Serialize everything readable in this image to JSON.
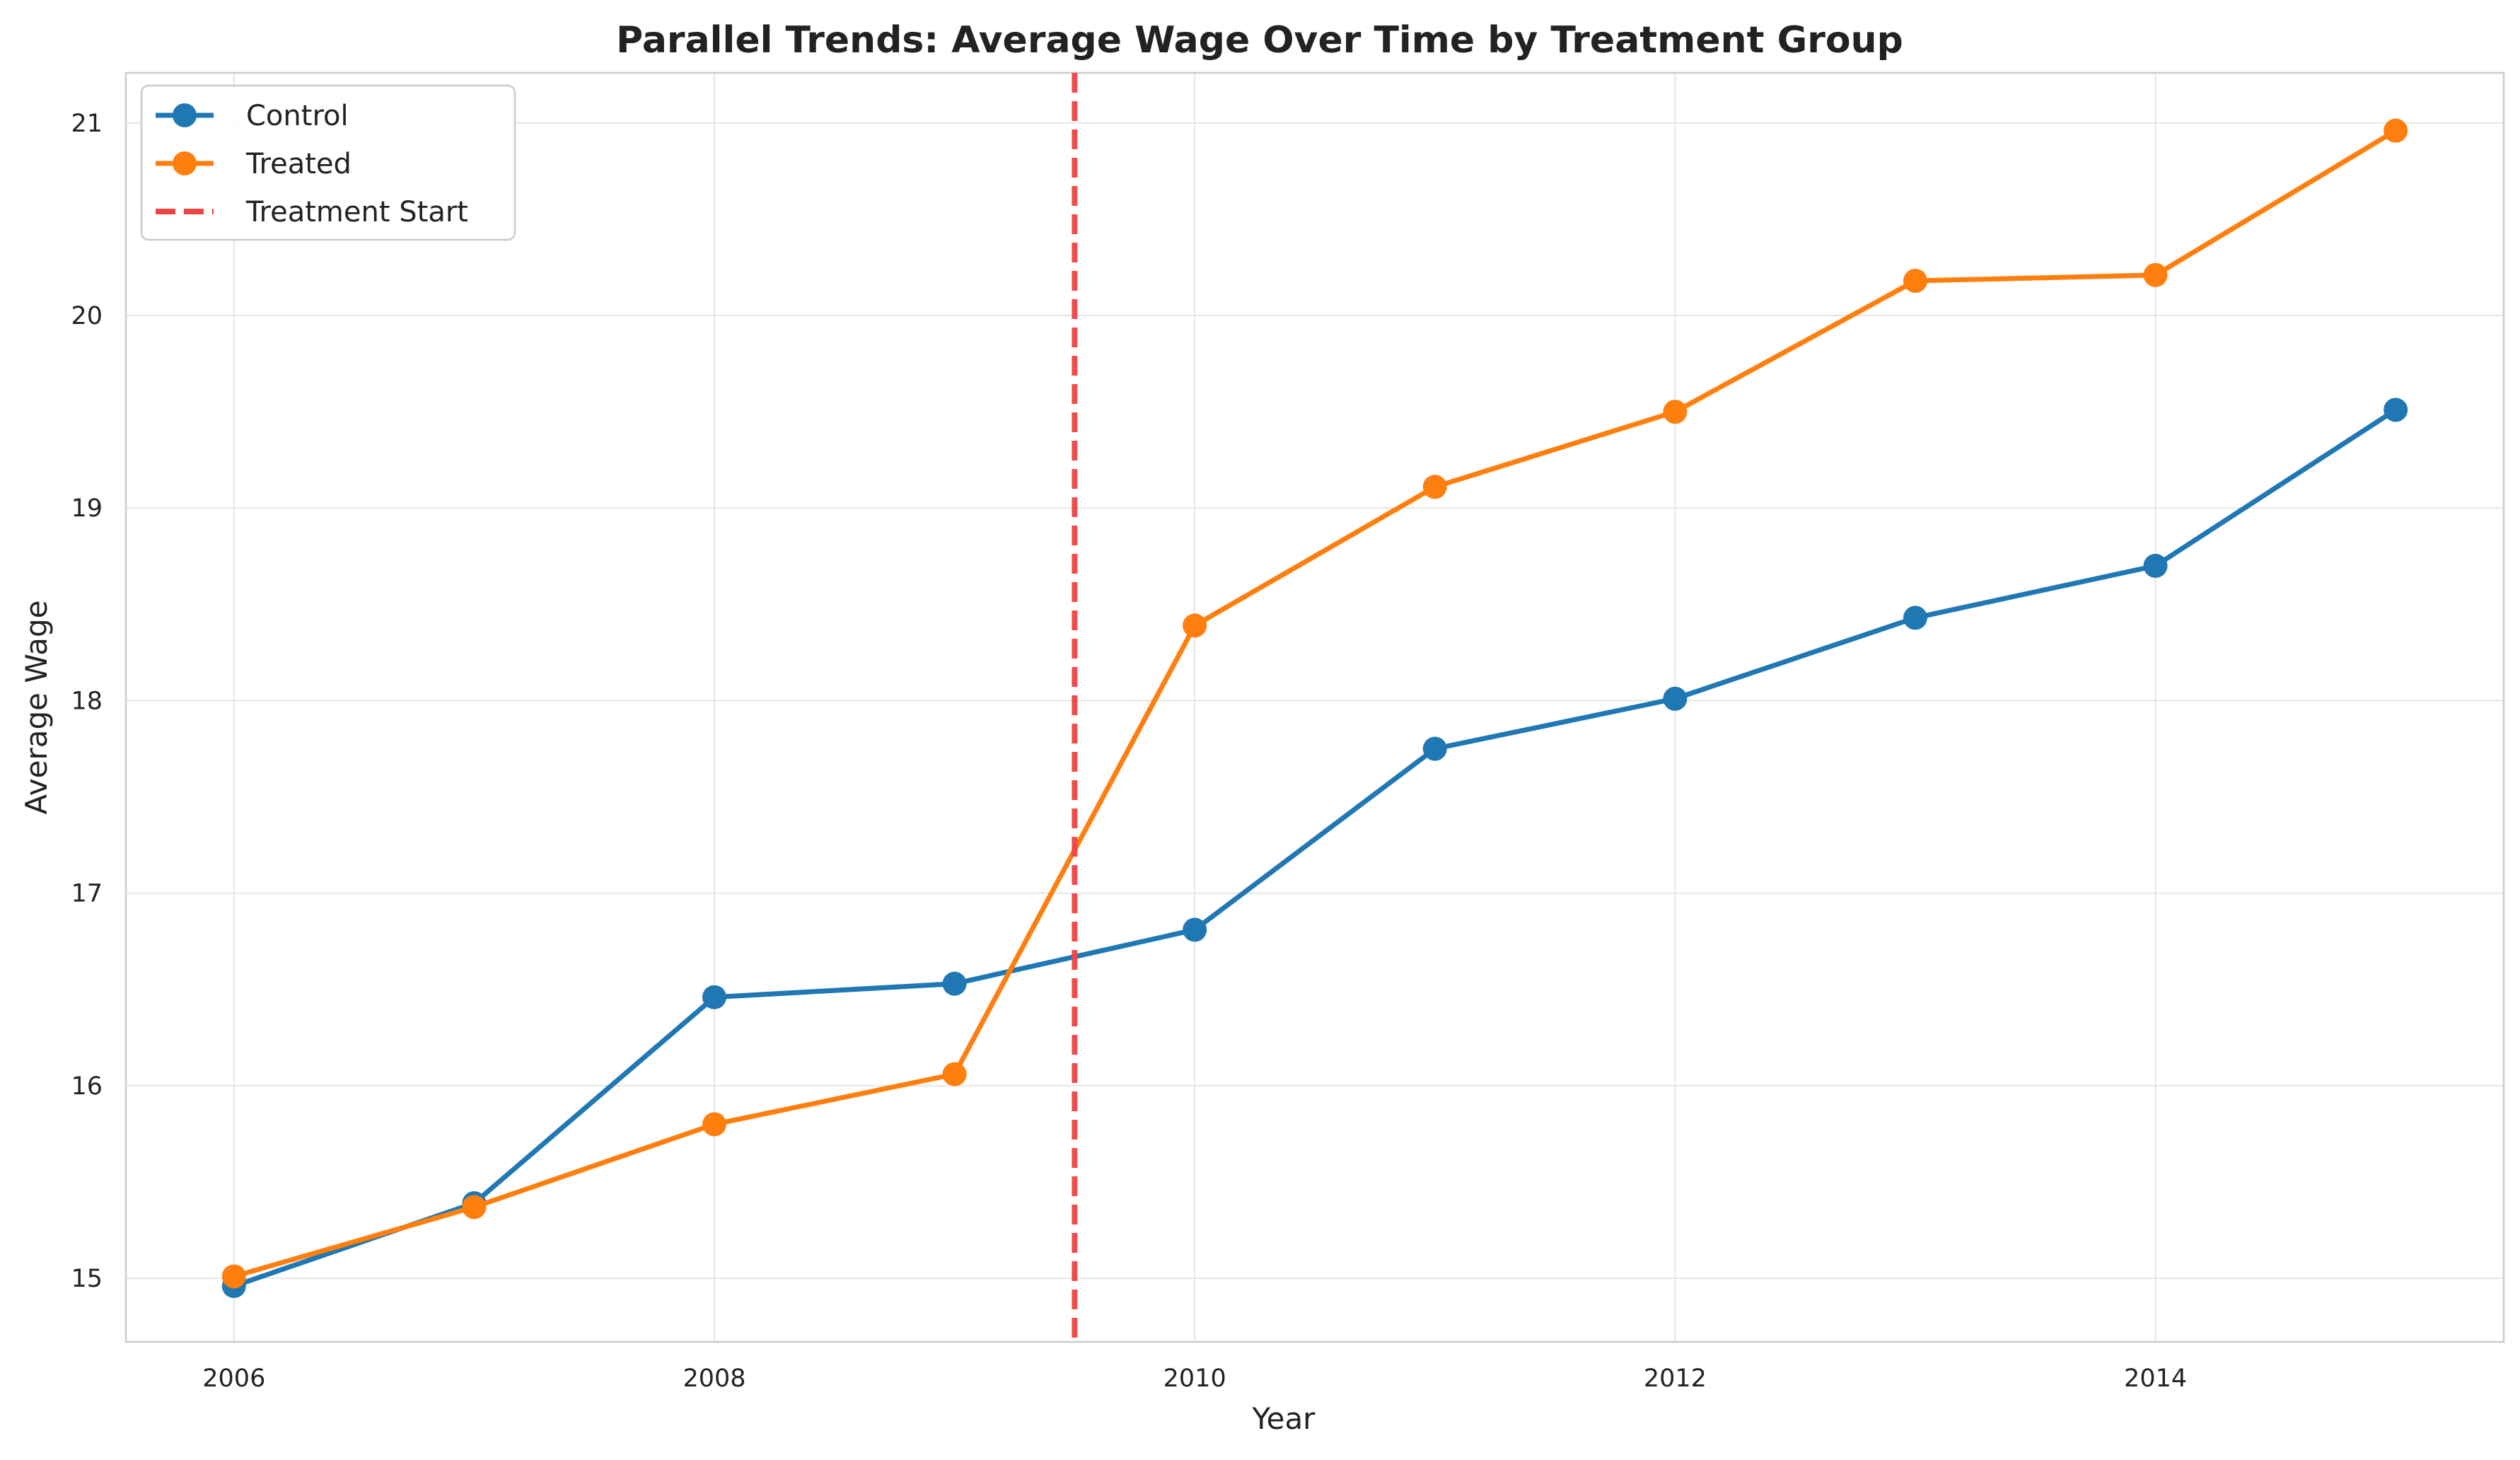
{
  "chart_data": {
    "type": "line",
    "title": "Parallel Trends: Average Wage Over Time by Treatment Group",
    "xlabel": "Year",
    "ylabel": "Average Wage",
    "x": [
      2006,
      2007,
      2008,
      2009,
      2010,
      2011,
      2012,
      2013,
      2014,
      2015
    ],
    "series": [
      {
        "name": "Control",
        "color": "#1f77b4",
        "values": [
          14.96,
          15.39,
          16.46,
          16.53,
          16.81,
          17.75,
          18.01,
          18.43,
          18.7,
          19.51
        ]
      },
      {
        "name": "Treated",
        "color": "#ff7f0e",
        "values": [
          15.01,
          15.37,
          15.8,
          16.06,
          18.39,
          19.11,
          19.5,
          20.18,
          20.21,
          20.96
        ]
      }
    ],
    "annotations": [
      {
        "type": "vline",
        "x": 2009.5,
        "label": "Treatment Start",
        "color": "#ef4444",
        "style": "dashed"
      }
    ],
    "xlim": [
      2005.55,
      2015.45
    ],
    "ylim": [
      14.67,
      21.26
    ],
    "xticks": [
      2006,
      2008,
      2010,
      2012,
      2014
    ],
    "yticks": [
      15,
      16,
      17,
      18,
      19,
      20,
      21
    ],
    "grid": true,
    "legend_position": "top-left"
  }
}
